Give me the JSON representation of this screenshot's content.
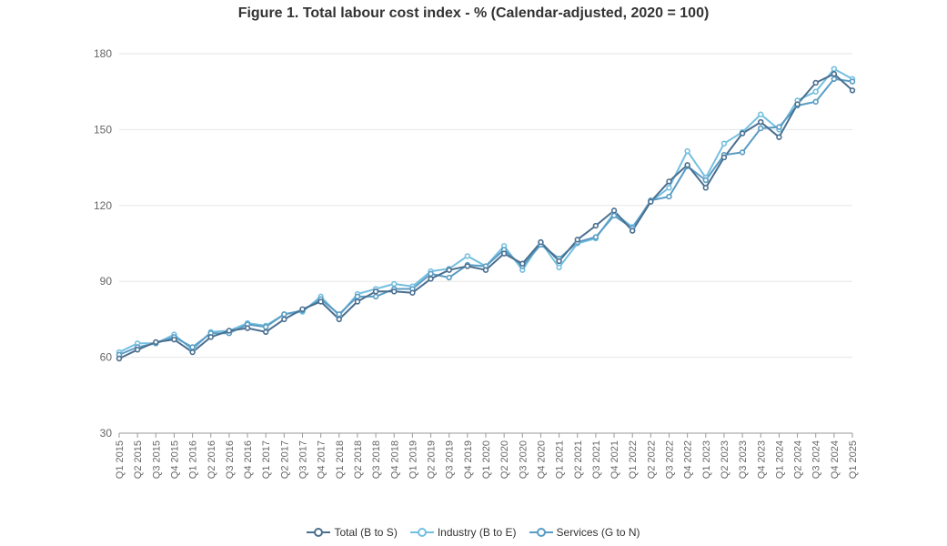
{
  "chart_data": {
    "type": "line",
    "title": "Figure 1. Total labour cost index - % (Calendar-adjusted, 2020 = 100)",
    "xlabel": "",
    "ylabel": "",
    "ylim": [
      30,
      180
    ],
    "yticks": [
      30,
      60,
      90,
      120,
      150,
      180
    ],
    "grid": "horizontal",
    "legend_position": "bottom-center",
    "categories": [
      "Q1 2015",
      "Q2 2015",
      "Q3 2015",
      "Q4 2015",
      "Q1 2016",
      "Q2 2016",
      "Q3 2016",
      "Q4 2016",
      "Q1 2017",
      "Q2 2017",
      "Q3 2017",
      "Q4 2017",
      "Q1 2018",
      "Q2 2018",
      "Q3 2018",
      "Q4 2018",
      "Q1 2019",
      "Q2 2019",
      "Q3 2019",
      "Q4 2019",
      "Q1 2020",
      "Q2 2020",
      "Q3 2020",
      "Q4 2020",
      "Q1 2021",
      "Q2 2021",
      "Q3 2021",
      "Q4 2021",
      "Q1 2022",
      "Q2 2022",
      "Q3 2022",
      "Q4 2022",
      "Q1 2023",
      "Q2 2023",
      "Q3 2023",
      "Q4 2023",
      "Q1 2024",
      "Q2 2024",
      "Q3 2024",
      "Q4 2024",
      "Q1 2025"
    ],
    "series": [
      {
        "name": "Total (B to S)",
        "color": "#4a6f8f",
        "values": [
          59.5,
          63,
          66,
          67,
          62,
          68,
          70.5,
          71.5,
          70,
          75,
          79,
          82,
          75,
          82,
          86,
          86,
          85.5,
          91,
          94.5,
          96,
          94.5,
          101,
          97,
          105.5,
          98,
          106.5,
          112,
          118,
          110,
          121.5,
          129.5,
          136,
          127,
          139,
          148.5,
          153,
          147,
          160,
          168.5,
          172,
          165.5
        ]
      },
      {
        "name": "Industry (B to E)",
        "color": "#74bfe0",
        "values": [
          62,
          65.5,
          65.5,
          69,
          63,
          70,
          70.5,
          73.5,
          72.5,
          77,
          78,
          84,
          76.5,
          85,
          87,
          89,
          88,
          94,
          95,
          100,
          96,
          104,
          94.5,
          105.5,
          95.5,
          105,
          107,
          117,
          111.5,
          121.5,
          127,
          141.5,
          131,
          144.5,
          149,
          156,
          150,
          161.5,
          165,
          174,
          170
        ]
      },
      {
        "name": "Services (G to N)",
        "color": "#5a9cc4",
        "values": [
          61,
          64,
          65.5,
          68,
          64,
          69.5,
          69.5,
          73,
          72,
          77,
          78.5,
          83,
          77,
          84,
          84,
          87,
          87,
          93,
          91.5,
          96.5,
          96,
          102.5,
          96,
          104.5,
          99,
          105.5,
          107.5,
          116,
          111,
          122,
          123.5,
          135.5,
          130,
          140,
          141,
          150.5,
          151,
          159.5,
          161,
          170,
          169
        ]
      }
    ]
  }
}
